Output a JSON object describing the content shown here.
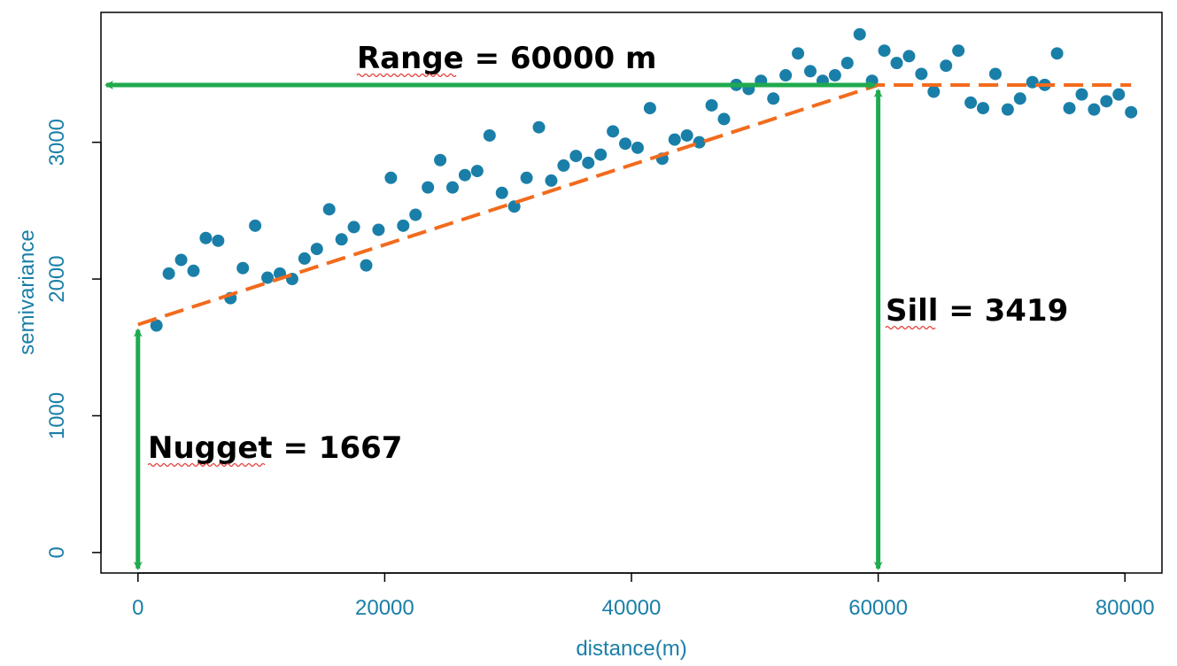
{
  "colors": {
    "points": "#1a7fa8",
    "fit_line": "#f26b1d",
    "arrows": "#1faa4e",
    "axis_text": "#1a7fa8",
    "frame": "#000000"
  },
  "chart_data": {
    "type": "scatter",
    "title": "",
    "xlabel": "distance(m)",
    "ylabel": "semivariance",
    "xlim": [
      -3000,
      83000
    ],
    "ylim": [
      -150,
      3950
    ],
    "x_ticks": [
      0,
      20000,
      40000,
      60000,
      80000
    ],
    "x_tick_labels": [
      "0",
      "20000",
      "40000",
      "60000",
      "80000"
    ],
    "y_ticks": [
      0,
      1000,
      2000,
      3000
    ],
    "y_tick_labels": [
      "0",
      "1000",
      "2000",
      "3000"
    ],
    "grid": false,
    "legend": "none",
    "points": {
      "x": [
        1500,
        2500,
        3500,
        4500,
        5500,
        6500,
        7500,
        8500,
        9500,
        10500,
        11500,
        12500,
        13500,
        14500,
        15500,
        16500,
        17500,
        18500,
        19500,
        20500,
        21500,
        22500,
        23500,
        24500,
        25500,
        26500,
        27500,
        28500,
        29500,
        30500,
        31500,
        32500,
        33500,
        34500,
        35500,
        36500,
        37500,
        38500,
        39500,
        40500,
        41500,
        42500,
        43500,
        44500,
        45500,
        46500,
        47500,
        48500,
        49500,
        50500,
        51500,
        52500,
        53500,
        54500,
        55500,
        56500,
        57500,
        58500,
        59500,
        60500,
        61500,
        62500,
        63500,
        64500,
        65500,
        66500,
        67500,
        68500,
        69500,
        70500,
        71500,
        72500,
        73500,
        74500,
        75500,
        76500,
        77500,
        78500,
        79500,
        80500
      ],
      "y": [
        1660,
        2040,
        2140,
        2060,
        2300,
        2280,
        1860,
        2080,
        2390,
        2010,
        2040,
        2000,
        2150,
        2220,
        2510,
        2290,
        2380,
        2100,
        2360,
        2740,
        2390,
        2470,
        2670,
        2870,
        2670,
        2760,
        2790,
        3050,
        2630,
        2530,
        2740,
        3110,
        2720,
        2830,
        2900,
        2850,
        2910,
        3080,
        2990,
        2960,
        3250,
        2880,
        3020,
        3050,
        3000,
        3270,
        3170,
        3420,
        3390,
        3450,
        3320,
        3490,
        3650,
        3520,
        3450,
        3490,
        3580,
        3790,
        3450,
        3670,
        3580,
        3630,
        3500,
        3370,
        3560,
        3670,
        3290,
        3250,
        3500,
        3240,
        3320,
        3440,
        3420,
        3650,
        3250,
        3350,
        3240,
        3300,
        3350,
        3220
      ]
    },
    "fitted_model": {
      "nugget": 1667,
      "sill": 3419,
      "range": 60000,
      "x_max": 80500
    },
    "annotations": {
      "range_label": "Range = 60000 m",
      "sill_label": "Sill = 3419",
      "nugget_label": "Nugget = 1667"
    }
  }
}
